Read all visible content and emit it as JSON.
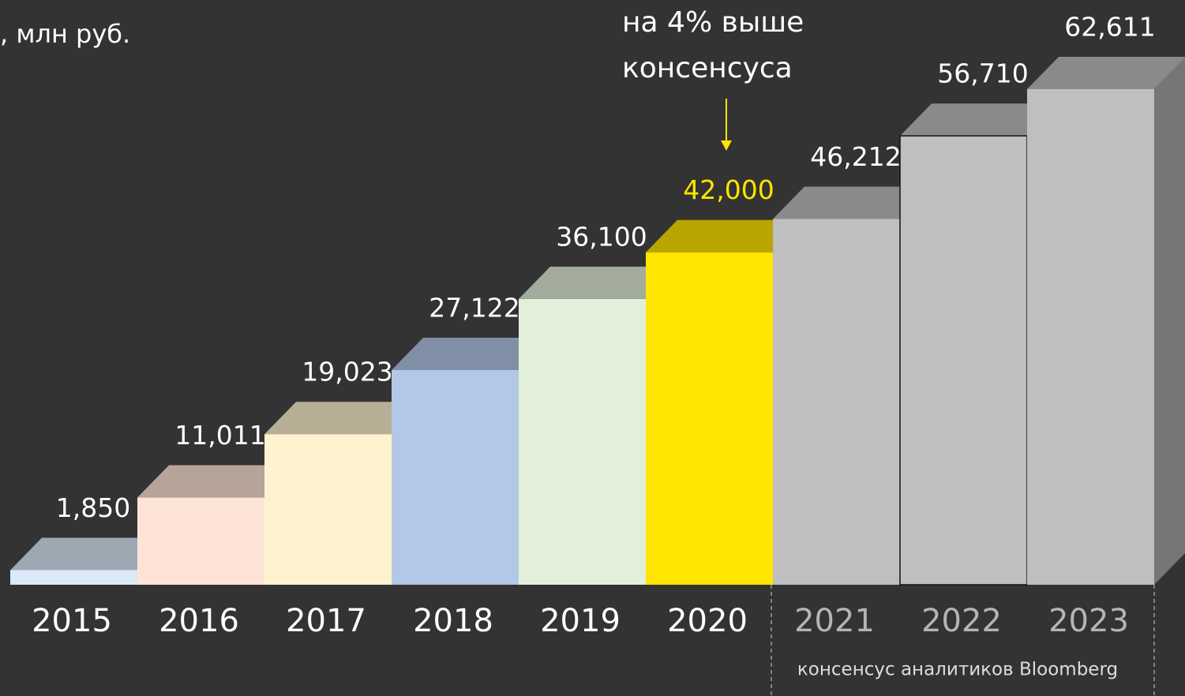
{
  "chart_data": {
    "type": "bar3d",
    "title": ", млн руб.",
    "annotation": [
      "на 4% выше",
      "консенсуса"
    ],
    "note": "консенсус аналитиков Bloomberg",
    "categories": [
      "2015",
      "2016",
      "2017",
      "2018",
      "2019",
      "2020",
      "2021",
      "2022",
      "2023"
    ],
    "values": [
      1850,
      11011,
      19023,
      27122,
      36100,
      42000,
      46212,
      56710,
      62611
    ],
    "value_labels": [
      "1,850",
      "11,011",
      "19,023",
      "27,122",
      "36,100",
      "42,000",
      "46,212",
      "56,710",
      "62,611"
    ],
    "colors": [
      "#dce9f7",
      "#fde4d6",
      "#fef3cf",
      "#b3c7e6",
      "#e2efd9",
      "#ffe500",
      "#bfbfbf",
      "#bfbfbf",
      "#bfbfbf"
    ],
    "value_label_colors": [
      "#ffffff",
      "#ffffff",
      "#ffffff",
      "#ffffff",
      "#ffffff",
      "#ffe500",
      "#ffffff",
      "#ffffff",
      "#ffffff"
    ],
    "category_label_colors": [
      "#ffffff",
      "#ffffff",
      "#ffffff",
      "#ffffff",
      "#ffffff",
      "#ffffff",
      "#b5b5b5",
      "#b5b5b5",
      "#b5b5b5"
    ]
  }
}
